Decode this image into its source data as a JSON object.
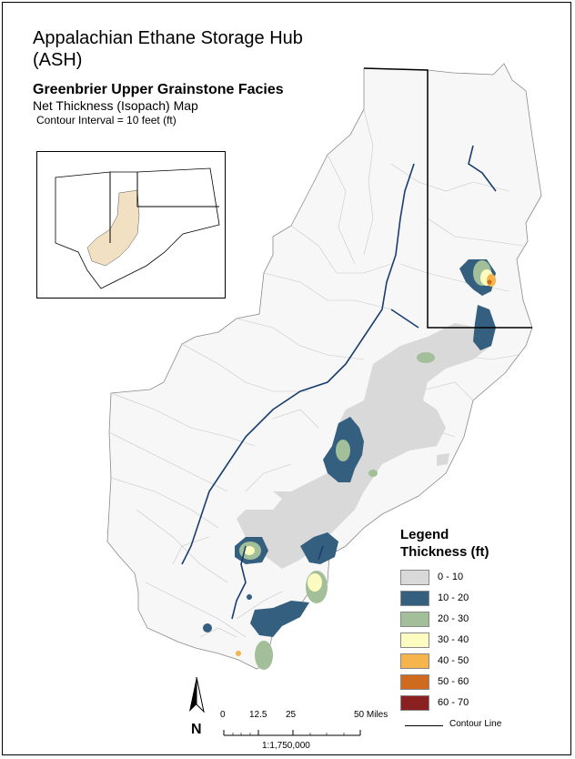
{
  "title": "Appalachian Ethane Storage Hub\n(ASH)",
  "title_line1": "Appalachian Ethane Storage Hub",
  "title_line2": "(ASH)",
  "subtitle": "Greenbrier Upper Grainstone Facies",
  "map_type": "Net Thickness (Isopach) Map",
  "contour_interval": "Contour Interval = 10 feet (ft)",
  "legend": {
    "heading": "Legend",
    "subheading": "Thickness (ft)",
    "classes": [
      {
        "label": "0 - 10",
        "color": "#d9d9d9"
      },
      {
        "label": "10 - 20",
        "color": "#355f7f"
      },
      {
        "label": "20 - 30",
        "color": "#a3bf9a"
      },
      {
        "label": "30 - 40",
        "color": "#fdfcc0"
      },
      {
        "label": "40 - 50",
        "color": "#f5b44c"
      },
      {
        "label": "50 - 60",
        "color": "#cf6a1e"
      },
      {
        "label": "60 - 70",
        "color": "#8a2020"
      }
    ],
    "contour_label": "Contour Line"
  },
  "scale": {
    "ticks": [
      "0",
      "12.5",
      "25",
      "50 Miles"
    ],
    "ratio": "1:1,750,000"
  },
  "north_label": "N",
  "colors": {
    "county_fill": "#f7f7f7",
    "county_border": "#b0b0b0",
    "state_border": "#000000",
    "river": "#1a3d70",
    "inset_fill": "#f2e0c2"
  }
}
